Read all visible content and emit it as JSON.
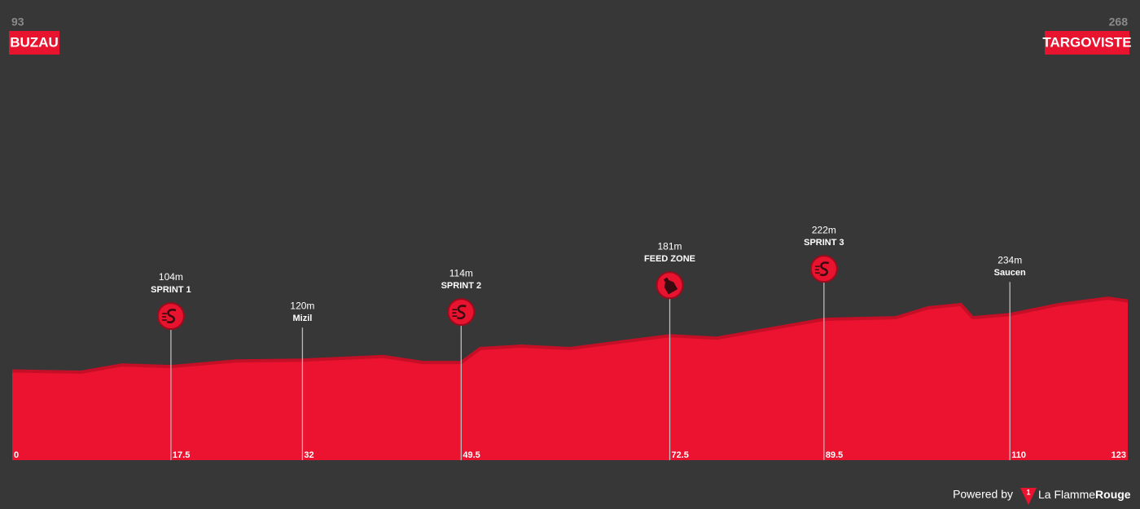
{
  "chart_data": {
    "type": "area",
    "start": {
      "elevation": 93,
      "name": "BUZAU"
    },
    "finish": {
      "elevation": 268,
      "name": "TARGOVISTE"
    },
    "x": [
      0,
      7.6,
      12.1,
      17.5,
      24.7,
      32,
      40.9,
      45.3,
      49.5,
      51.6,
      56.1,
      61.5,
      66.9,
      72.5,
      77.7,
      84,
      89.5,
      97.4,
      101,
      104.6,
      105.9,
      110,
      115.4,
      120.8,
      123
    ],
    "values": [
      93,
      90,
      108,
      104,
      118,
      120,
      129,
      114,
      114,
      149,
      155,
      149,
      165,
      181,
      175,
      200,
      222,
      226,
      251,
      259,
      226,
      234,
      259,
      275,
      268
    ],
    "color": "#ec1330",
    "xlim": [
      0,
      123
    ],
    "ylim": [
      -130,
      1000
    ],
    "xticks": [
      0,
      17.5,
      32,
      49.5,
      72.5,
      89.5,
      110,
      123
    ],
    "markers": [
      {
        "elevation": 104,
        "value_label": "104m",
        "name": "SPRINT 1"
      },
      {
        "elevation": 120,
        "value_label": "120m",
        "name": "Mizil"
      },
      {
        "elevation": 114,
        "value_label": "114m",
        "name": "SPRINT 2"
      },
      {
        "elevation": 181,
        "value_label": "181m",
        "name": "FEED ZONE"
      },
      {
        "elevation": 222,
        "value_label": "222m",
        "name": "SPRINT 3"
      },
      {
        "elevation": 234,
        "value_label": "234m",
        "name": "Saucen"
      }
    ]
  },
  "footer": {
    "powered": "Powered by",
    "logo": "1",
    "brand": "La Flamme",
    "brand_bold": "Rouge"
  }
}
